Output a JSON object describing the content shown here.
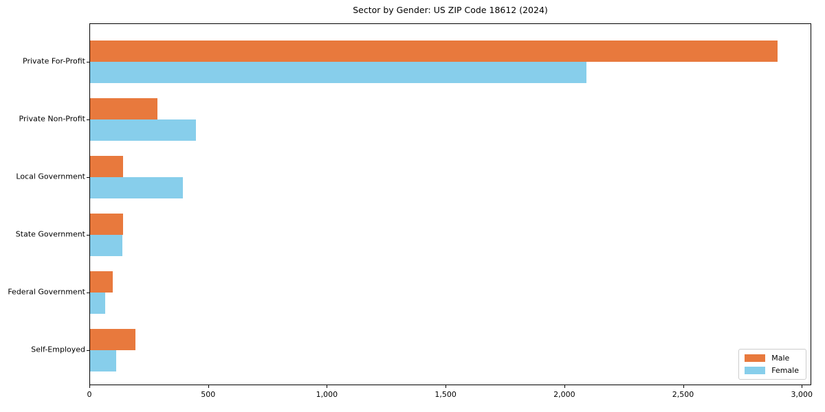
{
  "chart_data": {
    "type": "bar",
    "orientation": "horizontal",
    "title": "Sector by Gender: US ZIP Code 18612 (2024)",
    "categories": [
      "Private For-Profit",
      "Private Non-Profit",
      "Local Government",
      "State Government",
      "Federal Government",
      "Self-Employed"
    ],
    "series": [
      {
        "name": "Male",
        "color": "#e8793d",
        "values": [
          2895,
          285,
          140,
          140,
          95,
          190
        ]
      },
      {
        "name": "Female",
        "color": "#87ceeb",
        "values": [
          2090,
          445,
          390,
          135,
          65,
          110
        ]
      }
    ],
    "xlabel": "",
    "ylabel": "",
    "xlim": [
      0,
      3034
    ],
    "x_ticks": [
      0,
      500,
      1000,
      1500,
      2000,
      2500,
      3000
    ],
    "x_tick_labels": [
      "0",
      "500",
      "1,000",
      "1,500",
      "2,000",
      "2,500",
      "3,000"
    ],
    "grid": false,
    "legend_position": "lower right",
    "plot_background": "#ffffff",
    "spine_color": "#000000"
  }
}
